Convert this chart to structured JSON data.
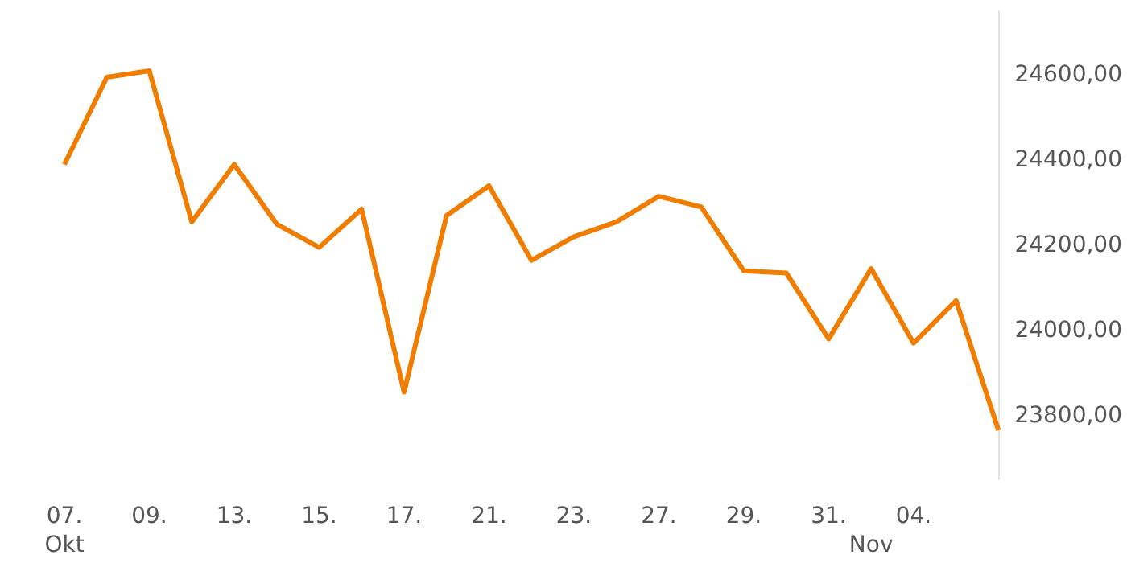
{
  "chart_data": {
    "type": "line",
    "categories": [
      "07.\nOkt",
      null,
      "09.",
      null,
      "13.",
      null,
      "15.",
      null,
      "17.",
      null,
      "21.",
      null,
      "23.",
      null,
      "27.",
      null,
      "29.",
      null,
      "31.",
      "\nNov",
      "04.",
      null,
      null
    ],
    "series": [
      {
        "color": "#f07d00",
        "values": [
          24390,
          24595,
          24610,
          24255,
          24390,
          24250,
          24195,
          24285,
          23855,
          24270,
          24340,
          24165,
          24220,
          24255,
          24315,
          24290,
          24140,
          24135,
          23980,
          24145,
          23970,
          24070,
          23765
        ]
      }
    ],
    "ylim": [
      23650,
      24750
    ],
    "yticks": [
      {
        "value": 23800,
        "label": "23800,00"
      },
      {
        "value": 24000,
        "label": "24000,00"
      },
      {
        "value": 24200,
        "label": "24200,00"
      },
      {
        "value": 24400,
        "label": "24400,00"
      },
      {
        "value": 24600,
        "label": "24600,00"
      }
    ],
    "grid": false,
    "marker": "none",
    "line_style": "solid"
  }
}
